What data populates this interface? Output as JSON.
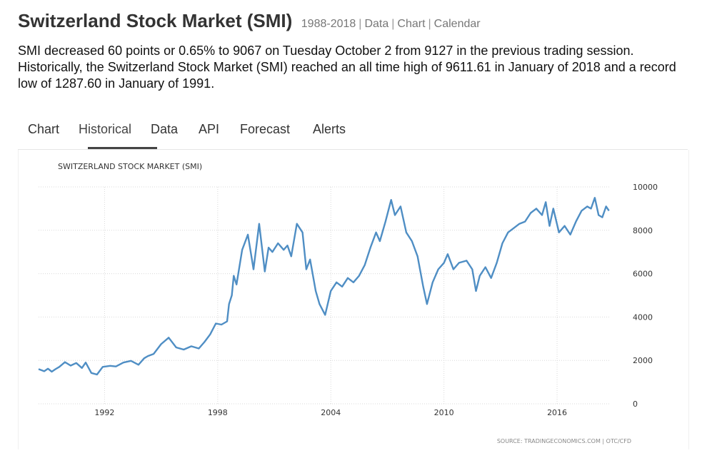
{
  "header": {
    "title": "Switzerland Stock Market (SMI)",
    "range": "1988-2018",
    "links": [
      "Data",
      "Chart",
      "Calendar"
    ]
  },
  "summary": "SMI decreased 60 points or 0.65% to 9067 on Tuesday October 2 from 9127 in the previous trading session. Historically, the Switzerland Stock Market (SMI) reached an all time high of 9611.61 in January of 2018 and a record low of 1287.60 in January of 1991.",
  "tabs": [
    {
      "label": "Chart",
      "active": false
    },
    {
      "label": "Historical",
      "active": true
    },
    {
      "label": "Data",
      "active": false
    },
    {
      "label": "API",
      "active": false
    },
    {
      "label": "Forecast",
      "active": false
    },
    {
      "label": "Alerts",
      "active": false
    }
  ],
  "chart_data": {
    "type": "line",
    "title": "SWITZERLAND STOCK MARKET (SMI)",
    "source": "SOURCE: TRADINGECONOMICS.COM | OTC/CFD",
    "xlim": [
      1988.5,
      2018.8
    ],
    "ylim": [
      0,
      10000
    ],
    "x_ticks": [
      1992,
      1998,
      2004,
      2010,
      2016
    ],
    "y_ticks": [
      0,
      2000,
      4000,
      6000,
      8000,
      10000
    ],
    "grid": true,
    "line_color": "#4f8ec4",
    "series": [
      {
        "x": [
          1988.5,
          1988.8,
          1989.0,
          1989.2,
          1989.4,
          1989.6,
          1989.9,
          1990.2,
          1990.5,
          1990.8,
          1991.0,
          1991.3,
          1991.6,
          1991.9,
          1992.3,
          1992.6,
          1993.0,
          1993.4,
          1993.8,
          1994.1,
          1994.3,
          1994.6,
          1995.0,
          1995.4,
          1995.8,
          1996.2,
          1996.6,
          1997.0,
          1997.3,
          1997.6,
          1997.9,
          1998.2,
          1998.5,
          1998.6,
          1998.75,
          1998.85,
          1999.0,
          1999.3,
          1999.6,
          1999.9,
          2000.2,
          2000.5,
          2000.7,
          2000.9,
          2001.2,
          2001.5,
          2001.7,
          2001.9,
          2002.2,
          2002.5,
          2002.7,
          2002.9,
          2003.2,
          2003.4,
          2003.7,
          2004.0,
          2004.3,
          2004.6,
          2004.9,
          2005.2,
          2005.5,
          2005.8,
          2006.1,
          2006.4,
          2006.6,
          2006.9,
          2007.2,
          2007.4,
          2007.7,
          2008.0,
          2008.3,
          2008.6,
          2008.9,
          2009.1,
          2009.4,
          2009.7,
          2010.0,
          2010.2,
          2010.5,
          2010.8,
          2011.2,
          2011.5,
          2011.7,
          2011.9,
          2012.2,
          2012.5,
          2012.8,
          2013.1,
          2013.4,
          2013.7,
          2014.0,
          2014.3,
          2014.6,
          2014.9,
          2015.2,
          2015.4,
          2015.6,
          2015.8,
          2016.1,
          2016.4,
          2016.7,
          2017.0,
          2017.3,
          2017.6,
          2017.8,
          2018.0,
          2018.2,
          2018.4,
          2018.6,
          2018.75
        ],
        "values": [
          1600,
          1500,
          1620,
          1480,
          1600,
          1700,
          1920,
          1760,
          1880,
          1650,
          1900,
          1420,
          1350,
          1700,
          1750,
          1720,
          1900,
          1980,
          1800,
          2100,
          2200,
          2300,
          2750,
          3050,
          2600,
          2500,
          2650,
          2550,
          2850,
          3200,
          3700,
          3650,
          3800,
          4600,
          5000,
          5900,
          5500,
          7100,
          7800,
          6200,
          8300,
          6100,
          7200,
          7000,
          7400,
          7100,
          7300,
          6800,
          8300,
          7900,
          6200,
          6650,
          5200,
          4600,
          4100,
          5200,
          5600,
          5400,
          5800,
          5600,
          5900,
          6400,
          7200,
          7900,
          7500,
          8400,
          9400,
          8700,
          9100,
          7900,
          7500,
          6800,
          5400,
          4600,
          5600,
          6200,
          6500,
          6900,
          6200,
          6500,
          6600,
          6200,
          5200,
          5900,
          6300,
          5800,
          6500,
          7400,
          7900,
          8100,
          8300,
          8400,
          8800,
          9000,
          8700,
          9300,
          8200,
          9000,
          7900,
          8200,
          7800,
          8400,
          8900,
          9100,
          9000,
          9500,
          8700,
          8600,
          9100,
          8900
        ]
      }
    ]
  }
}
